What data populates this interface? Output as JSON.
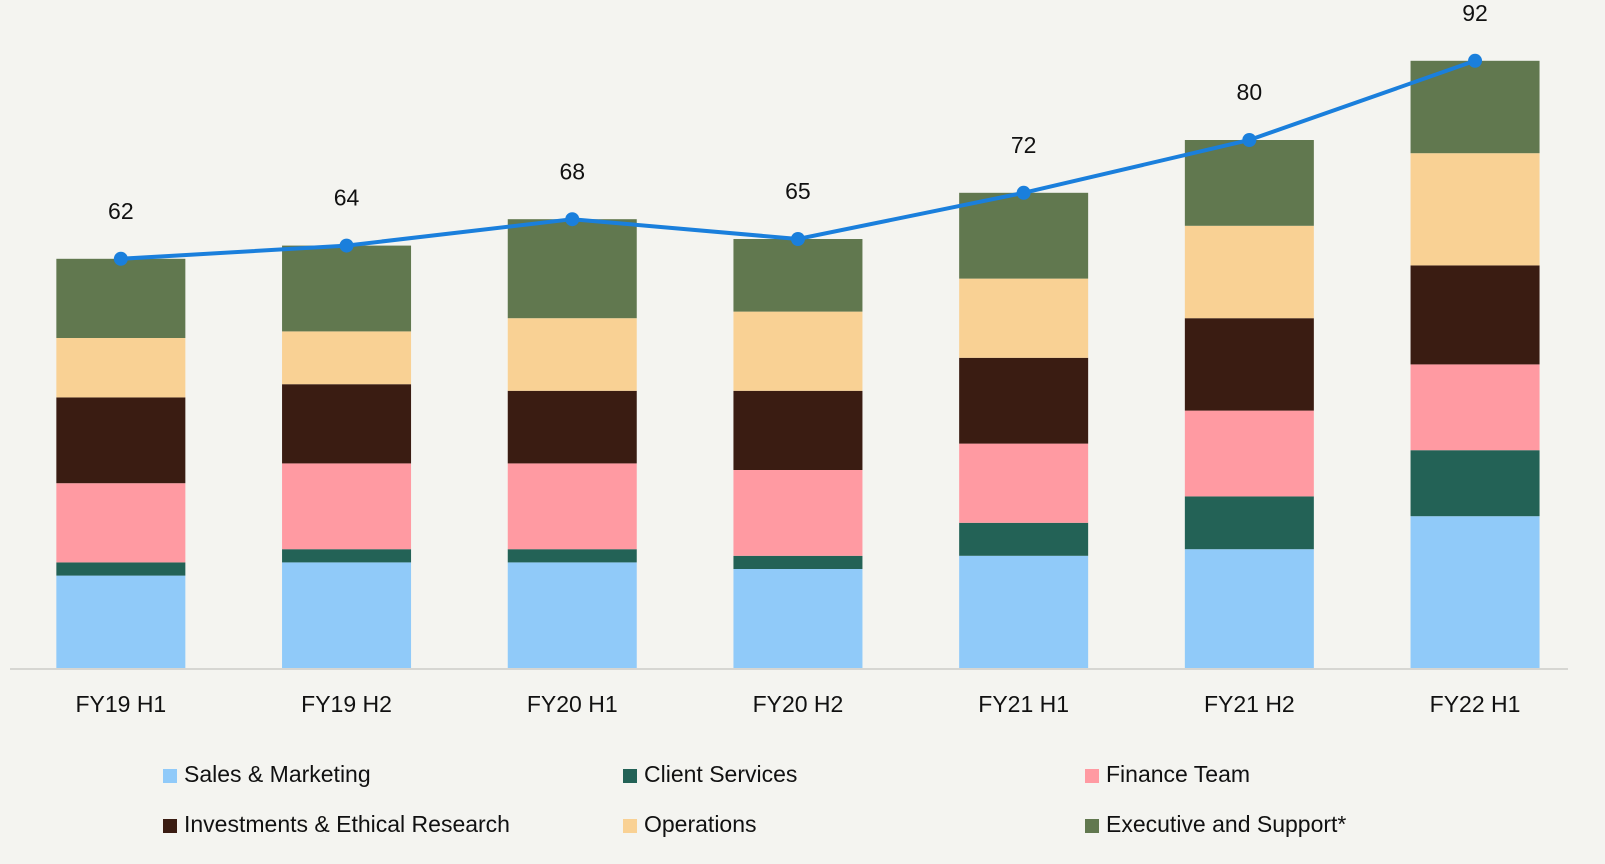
{
  "chart_data": {
    "type": "stacked-bar-line",
    "categories": [
      "FY19 H1",
      "FY19 H2",
      "FY20 H1",
      "FY20 H2",
      "FY21 H1",
      "FY21 H2",
      "FY22 H1"
    ],
    "series": [
      {
        "name": "Sales & Marketing",
        "color": "#90caf9",
        "values": [
          14,
          16,
          16,
          15,
          17,
          18,
          23
        ]
      },
      {
        "name": "Client Services",
        "color": "#236256",
        "values": [
          2,
          2,
          2,
          2,
          5,
          8,
          10
        ]
      },
      {
        "name": "Finance Team",
        "color": "#ff9aa2",
        "values": [
          12,
          13,
          13,
          13,
          12,
          13,
          13
        ]
      },
      {
        "name": "Investments & Ethical Research",
        "color": "#3a1c12",
        "values": [
          13,
          12,
          11,
          12,
          13,
          14,
          15
        ]
      },
      {
        "name": "Operations",
        "color": "#f9d194",
        "values": [
          9,
          8,
          11,
          12,
          12,
          14,
          17
        ]
      },
      {
        "name": "Executive and Support*",
        "color": "#61784f",
        "values": [
          12,
          13,
          15,
          11,
          13,
          13,
          14
        ]
      }
    ],
    "line": {
      "color": "#1a7fdc",
      "values": [
        62,
        64,
        68,
        65,
        72,
        80,
        92
      ]
    },
    "ylim": [
      0,
      100
    ]
  }
}
